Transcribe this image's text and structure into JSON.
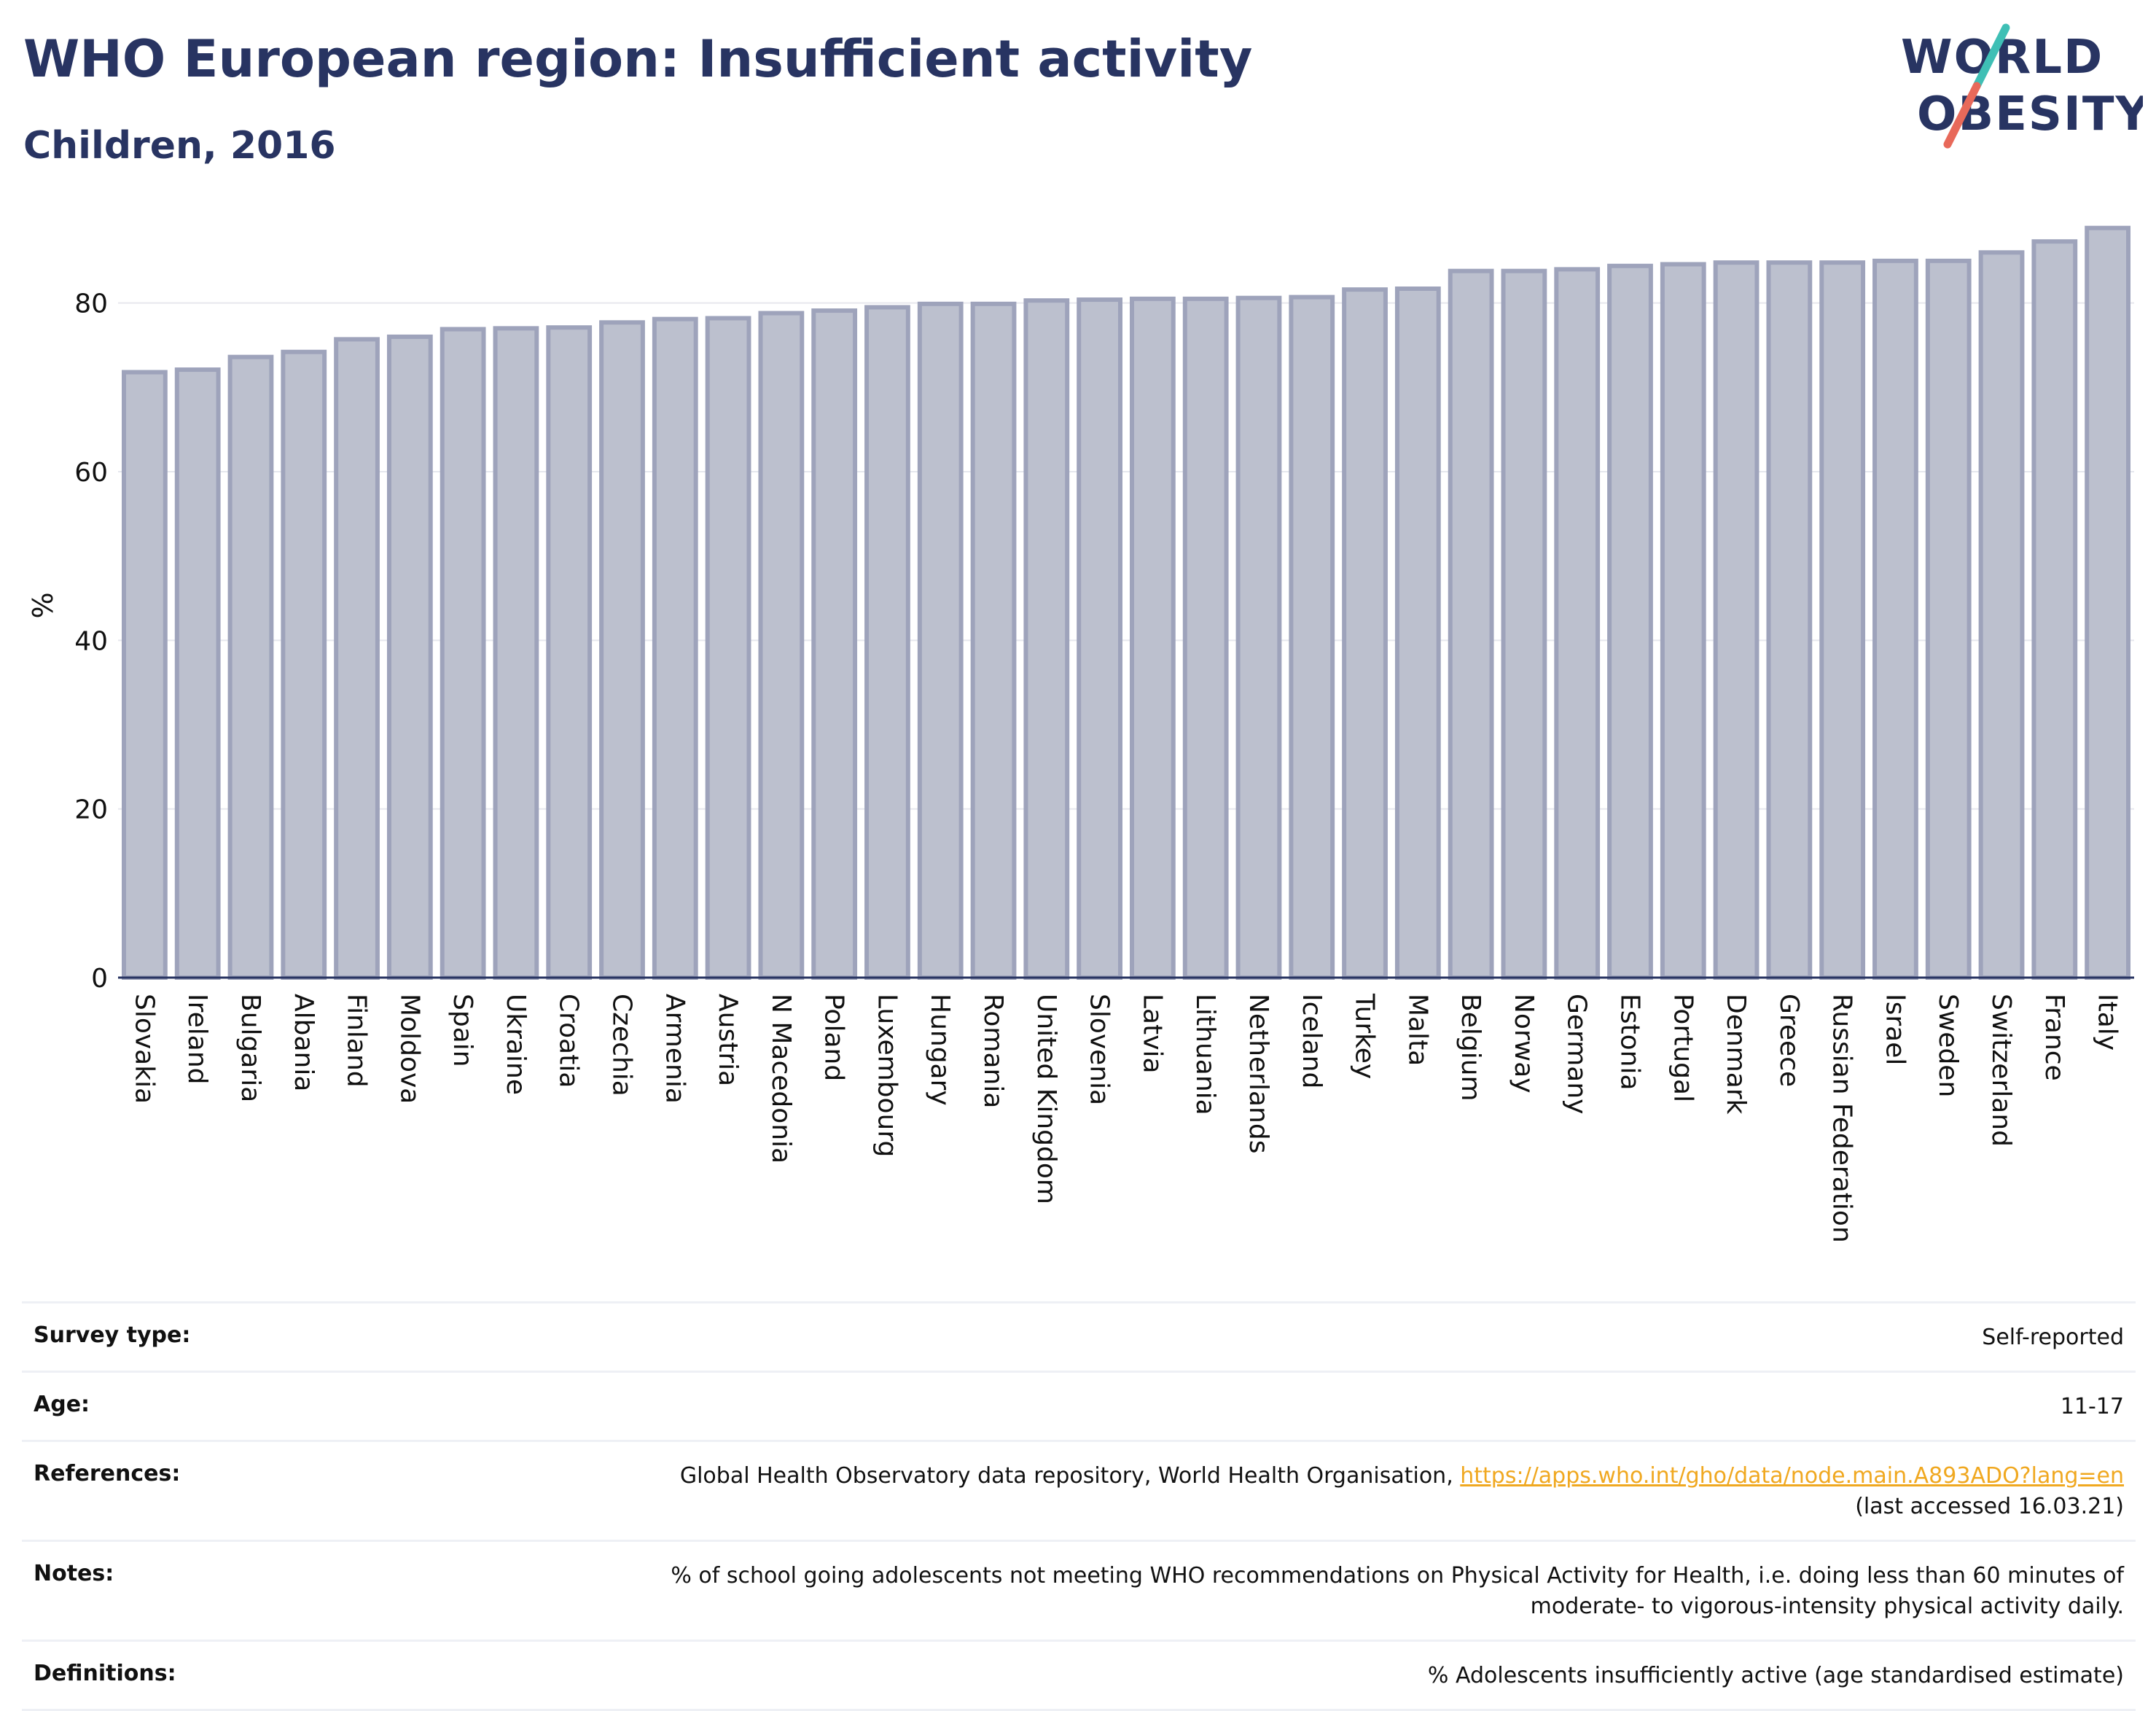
{
  "header": {
    "title": "WHO European region: Insufficient activity",
    "subtitle": "Children, 2016"
  },
  "logo": {
    "line1": "WORLD",
    "line2": "OBESITY",
    "colors": {
      "text": "#283462",
      "slash_teal": "#3fbfb5",
      "slash_red": "#e8695a"
    }
  },
  "chart_data": {
    "type": "bar",
    "title": "",
    "xlabel": "",
    "ylabel": "%",
    "ylim": [
      0,
      90
    ],
    "yticks": [
      0,
      20,
      40,
      60,
      80
    ],
    "grid": true,
    "bar_fill": "#bcc0ce",
    "bar_stroke": "#9ea3bb",
    "categories": [
      "Slovakia",
      "Ireland",
      "Bulgaria",
      "Albania",
      "Finland",
      "Moldova",
      "Spain",
      "Ukraine",
      "Croatia",
      "Czechia",
      "Armenia",
      "Austria",
      "N Macedonia",
      "Poland",
      "Luxembourg",
      "Hungary",
      "Romania",
      "United Kingdom",
      "Slovenia",
      "Latvia",
      "Lithuania",
      "Netherlands",
      "Iceland",
      "Turkey",
      "Malta",
      "Belgium",
      "Norway",
      "Germany",
      "Estonia",
      "Portugal",
      "Denmark",
      "Greece",
      "Russian Federation",
      "Israel",
      "Sweden",
      "Switzerland",
      "France",
      "Italy"
    ],
    "values": [
      71.8,
      72.1,
      73.6,
      74.2,
      75.7,
      76.0,
      76.9,
      77.0,
      77.1,
      77.7,
      78.1,
      78.2,
      78.8,
      79.1,
      79.5,
      79.9,
      79.9,
      80.3,
      80.4,
      80.5,
      80.5,
      80.6,
      80.7,
      81.6,
      81.7,
      83.8,
      83.8,
      84.0,
      84.4,
      84.6,
      84.8,
      84.8,
      84.8,
      85.0,
      85.0,
      86.0,
      87.3,
      88.9
    ]
  },
  "meta": {
    "survey_type": {
      "label": "Survey type:",
      "value": "Self-reported"
    },
    "age": {
      "label": "Age:",
      "value": "11-17"
    },
    "references": {
      "label": "References:",
      "text": "Global Health Observatory data repository, World Health Organisation, ",
      "link": "https://apps.who.int/gho/data/node.main.A893ADO?lang=en",
      "accessed": "(last accessed 16.03.21)"
    },
    "notes": {
      "label": "Notes:",
      "line1": "% of school going adolescents not meeting WHO recommendations on Physical Activity for Health, i.e. doing less than 60 minutes of",
      "line2": "moderate- to vigorous-intensity physical activity daily."
    },
    "definitions": {
      "label": "Definitions:",
      "value": "% Adolescents insufficiently active (age standardised estimate)"
    }
  }
}
